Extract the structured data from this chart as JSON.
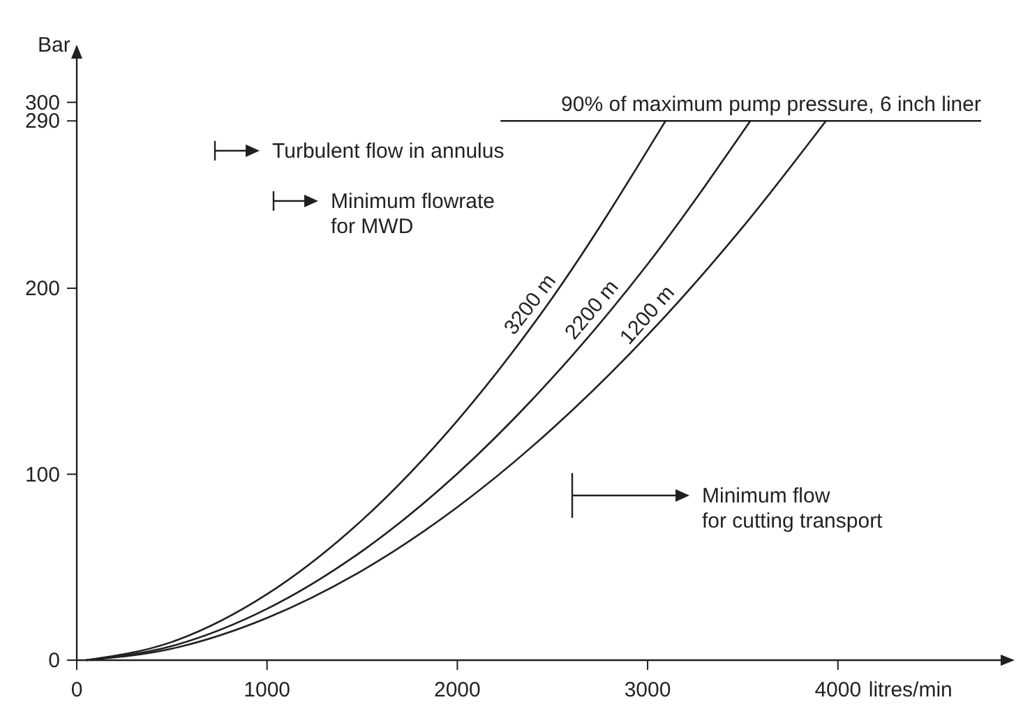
{
  "chart_data": {
    "type": "line",
    "xlabel": "litres/min",
    "ylabel": "Bar",
    "xlim": [
      0,
      4870
    ],
    "xticks": [
      0,
      1000,
      2000,
      3000,
      4000
    ],
    "ylim": [
      0,
      325
    ],
    "yticks": [
      0,
      100,
      200,
      290,
      300
    ],
    "grid": false,
    "marker": "none",
    "line_style": "solid",
    "series": [
      {
        "name": "3200 m",
        "color": "#231f20",
        "x": [
          50,
          500,
          1000,
          1500,
          2000,
          2500,
          3094
        ],
        "values": [
          0,
          9.8,
          35.5,
          75.4,
          128.8,
          195,
          290
        ]
      },
      {
        "name": "2200 m",
        "color": "#231f20",
        "x": [
          50,
          500,
          1000,
          1500,
          2000,
          2500,
          3000,
          3540
        ],
        "values": [
          0,
          7.6,
          27.6,
          58.7,
          100.3,
          151.9,
          213,
          290
        ]
      },
      {
        "name": "1200 m",
        "color": "#231f20",
        "x": [
          50,
          500,
          1000,
          1500,
          2000,
          2500,
          3000,
          3500,
          3937
        ],
        "values": [
          0,
          6.2,
          22.7,
          48.2,
          82.3,
          124.6,
          174.8,
          232.9,
          290
        ]
      }
    ],
    "ref_lines": [
      {
        "axis": "y",
        "value": 290,
        "label": "90% of maximum pump pressure, 6 inch liner",
        "color": "#231f20"
      }
    ],
    "annotations": [
      "Turbulent flow in annulus",
      "Minimum flowrate\nfor MWD",
      "Minimum flow\nfor cutting transport"
    ]
  }
}
